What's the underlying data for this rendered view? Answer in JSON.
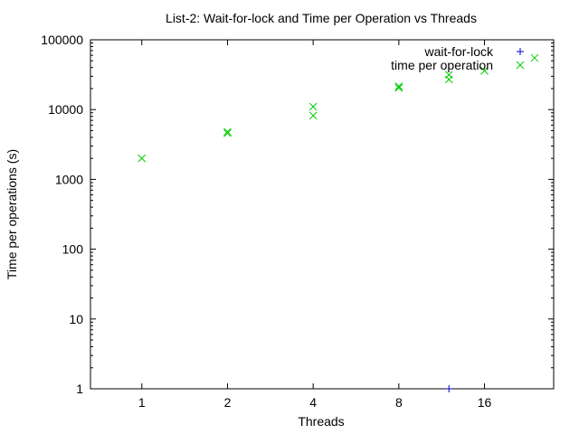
{
  "chart_data": {
    "type": "scatter",
    "title": "List-2: Wait-for-lock and Time per Operation vs Threads",
    "xlabel": "Threads",
    "ylabel": "Time per operations (s)",
    "xscale": "log2",
    "yscale": "log10",
    "xlim": [
      0.66,
      28
    ],
    "ylim": [
      1,
      100000
    ],
    "x_ticks": [
      {
        "value": 1,
        "label": "1"
      },
      {
        "value": 2,
        "label": "2"
      },
      {
        "value": 4,
        "label": "4"
      },
      {
        "value": 8,
        "label": "8"
      },
      {
        "value": 16,
        "label": "16"
      }
    ],
    "y_ticks": [
      {
        "value": 1,
        "label": "1"
      },
      {
        "value": 10,
        "label": "10"
      },
      {
        "value": 100,
        "label": "100"
      },
      {
        "value": 1000,
        "label": "1000"
      },
      {
        "value": 10000,
        "label": "10000"
      },
      {
        "value": 100000,
        "label": "100000"
      }
    ],
    "legend_position": "top-right",
    "series": [
      {
        "name": "wait-for-lock",
        "marker": "plus",
        "color": "#0000cc",
        "points": [
          {
            "x": 12,
            "y": 1
          }
        ]
      },
      {
        "name": "time per operation",
        "marker": "cross",
        "color": "#00cc00",
        "points": [
          {
            "x": 1,
            "y": 2000
          },
          {
            "x": 2,
            "y": 4600
          },
          {
            "x": 2,
            "y": 4800
          },
          {
            "x": 4,
            "y": 8200
          },
          {
            "x": 4,
            "y": 11000
          },
          {
            "x": 8,
            "y": 20500
          },
          {
            "x": 8,
            "y": 21500
          },
          {
            "x": 12,
            "y": 27000
          },
          {
            "x": 12,
            "y": 31500
          },
          {
            "x": 16,
            "y": 36000
          },
          {
            "x": 24,
            "y": 55000
          }
        ]
      }
    ]
  }
}
